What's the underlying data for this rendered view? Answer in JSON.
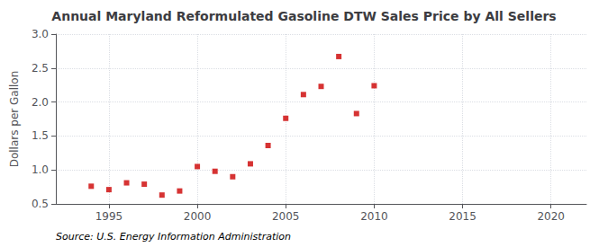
{
  "chart_data": {
    "type": "scatter",
    "title": "Annual Maryland Reformulated Gasoline DTW Sales Price by All Sellers",
    "ylabel": "Dollars per Gallon",
    "source": "Source: U.S. Energy Information Administration",
    "x": [
      1994,
      1995,
      1996,
      1997,
      1998,
      1999,
      2000,
      2001,
      2002,
      2003,
      2004,
      2005,
      2006,
      2007,
      2008,
      2009,
      2010
    ],
    "values": [
      0.76,
      0.71,
      0.81,
      0.79,
      0.63,
      0.69,
      1.05,
      0.98,
      0.9,
      1.09,
      1.36,
      1.76,
      2.11,
      2.23,
      2.67,
      1.83,
      2.24
    ],
    "color": "#cc0000",
    "marker": "square",
    "xlim": [
      1992,
      2022
    ],
    "xticks": [
      1995,
      2000,
      2005,
      2010,
      2015,
      2020
    ],
    "ylim": [
      0.5,
      3.0
    ],
    "yticks": [
      0.5,
      {
        "value": 1.0,
        "label": "1.0"
      },
      1.5,
      {
        "value": 2.0,
        "label": "2.0"
      },
      2.5,
      {
        "value": 3.0,
        "label": "3.0"
      }
    ],
    "grid": true
  }
}
